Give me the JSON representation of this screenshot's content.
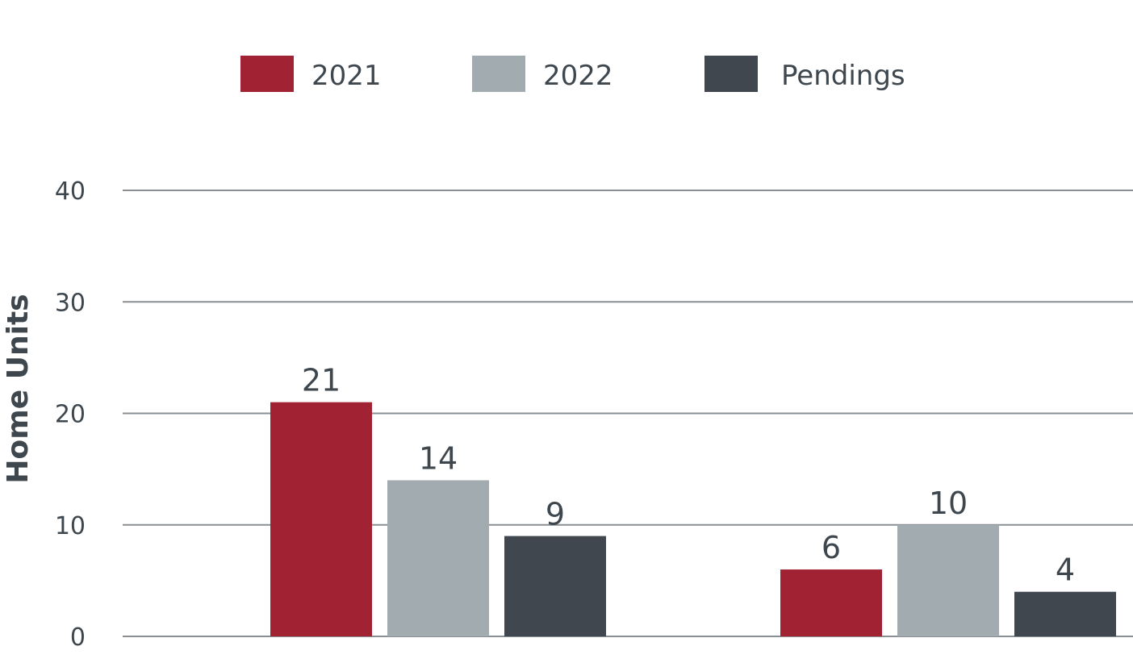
{
  "chart_data": {
    "type": "bar",
    "ylabel": "Home Units",
    "xlabel": "",
    "ylim": [
      0,
      40
    ],
    "yticks": [
      0,
      10,
      20,
      30,
      40
    ],
    "grid": true,
    "legend_position": "top",
    "categories": [
      "",
      ""
    ],
    "series": [
      {
        "name": "2021",
        "color": "#a12233",
        "values": [
          21,
          6
        ],
        "value_labels": [
          "21",
          "6"
        ]
      },
      {
        "name": "2022",
        "color": "#a2abb0",
        "values": [
          14,
          10
        ],
        "value_labels": [
          "14",
          "10"
        ]
      },
      {
        "name": "Pendings",
        "color": "#40474e",
        "values": [
          9,
          4
        ],
        "value_labels": [
          "9",
          "4"
        ]
      }
    ]
  }
}
